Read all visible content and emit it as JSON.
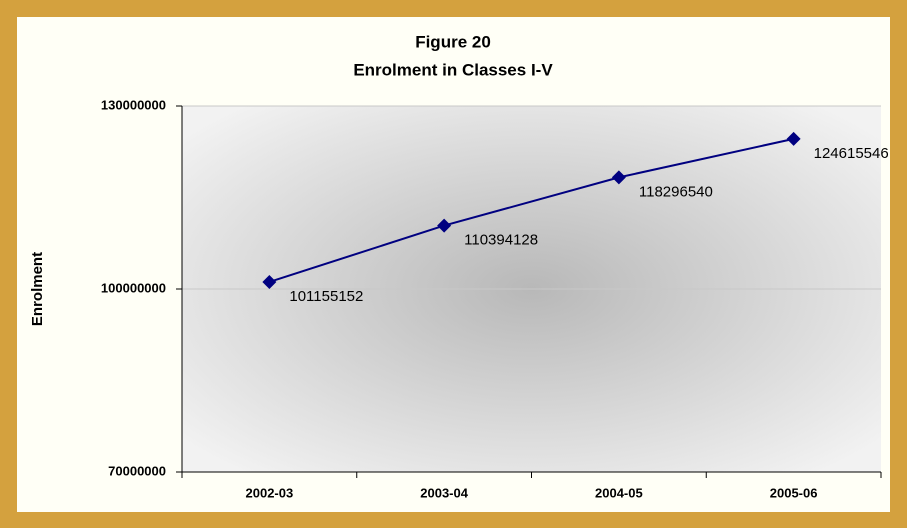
{
  "chart_data": {
    "type": "line",
    "title": "Figure 20",
    "subtitle": "Enrolment in Classes I-V",
    "y_label": "Enrolment",
    "categories": [
      "2002-03",
      "2003-04",
      "2004-05",
      "2005-06"
    ],
    "series": [
      {
        "name": "Enrolment",
        "color": "#000080",
        "values": [
          101155152,
          110394128,
          118296540,
          124615546
        ]
      }
    ],
    "ylim": [
      70000000,
      130000000
    ],
    "yticks": [
      70000000,
      100000000,
      130000000
    ],
    "grid": true
  }
}
